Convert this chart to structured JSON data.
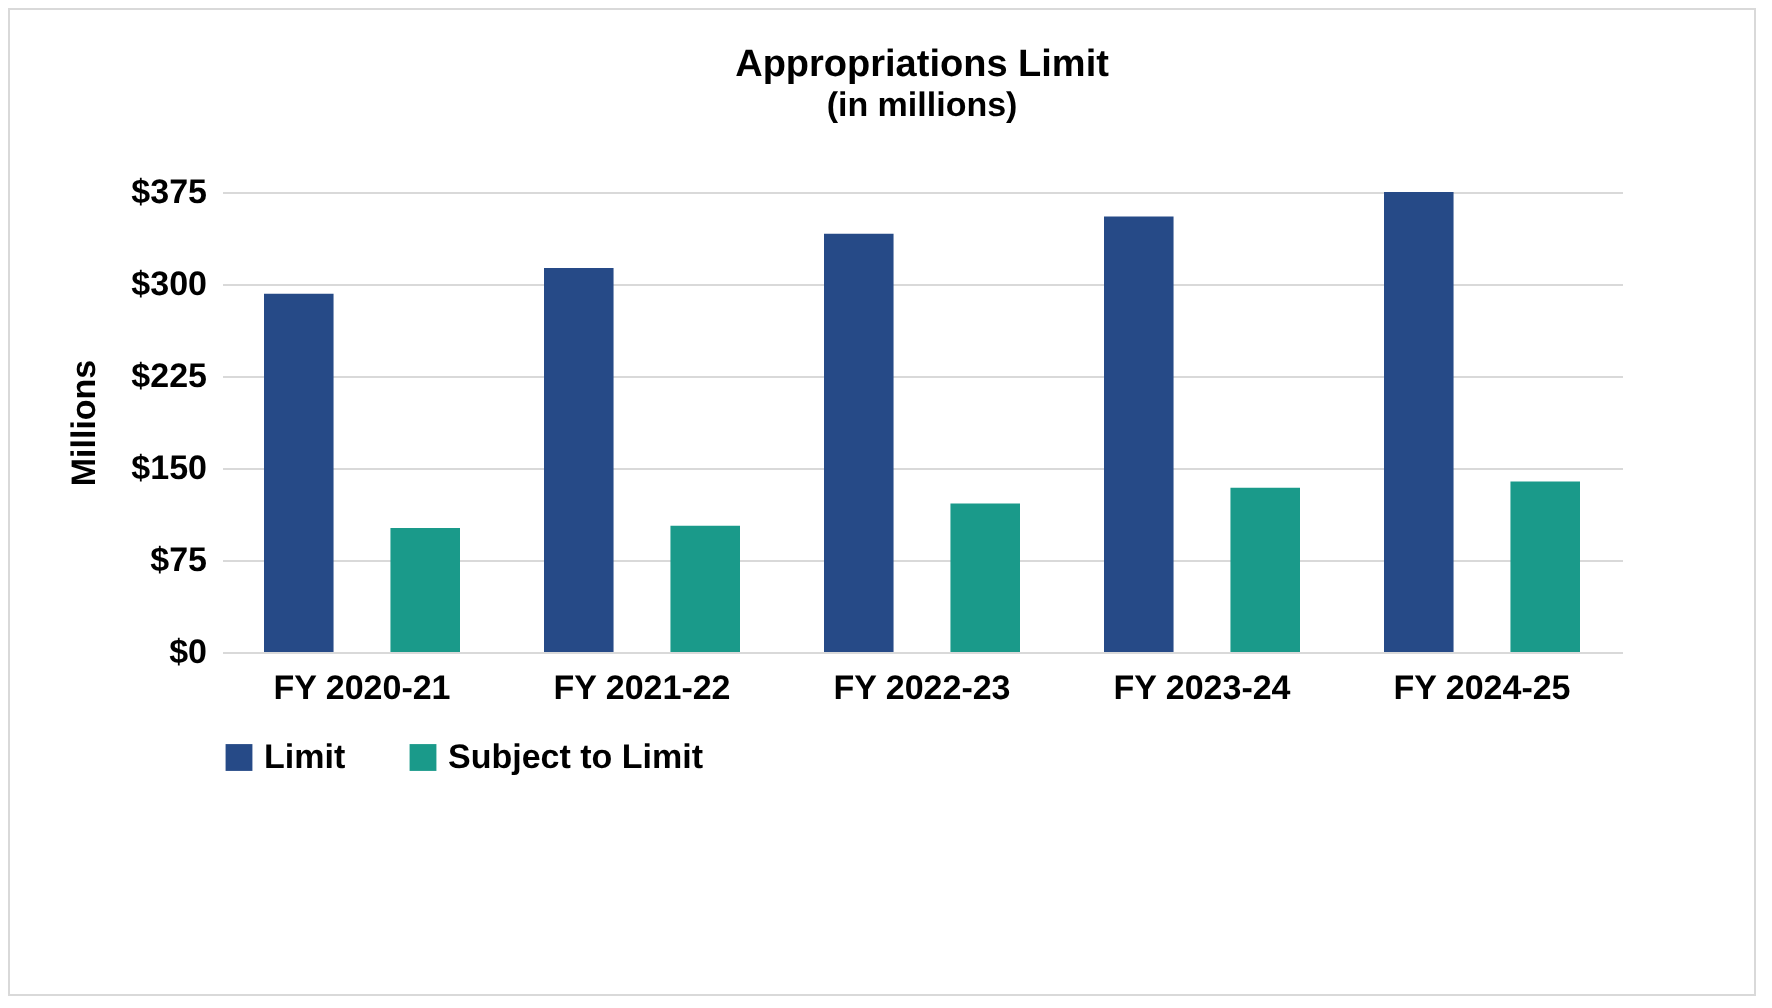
{
  "chart_data": {
    "type": "bar",
    "title": "Appropriations Limit",
    "subtitle": "(in millions)",
    "ylabel": "Millions",
    "categories": [
      "FY 2020-21",
      "FY 2021-22",
      "FY 2022-23",
      "FY 2023-24",
      "FY 2024-25"
    ],
    "series": [
      {
        "name": "Limit",
        "color": "#264a87",
        "values": [
          292,
          313,
          341,
          355,
          375
        ]
      },
      {
        "name": "Subject to Limit",
        "color": "#1a9a8a",
        "values": [
          101,
          103,
          121,
          134,
          139
        ]
      }
    ],
    "ylim": [
      0,
      375
    ],
    "yticks": [
      {
        "value": 0,
        "label": "$0"
      },
      {
        "value": 75,
        "label": "$75"
      },
      {
        "value": 150,
        "label": "$150"
      },
      {
        "value": 225,
        "label": "$225"
      },
      {
        "value": 300,
        "label": "$300"
      },
      {
        "value": 375,
        "label": "$375"
      }
    ],
    "grid": "y",
    "legend": "bottom"
  }
}
